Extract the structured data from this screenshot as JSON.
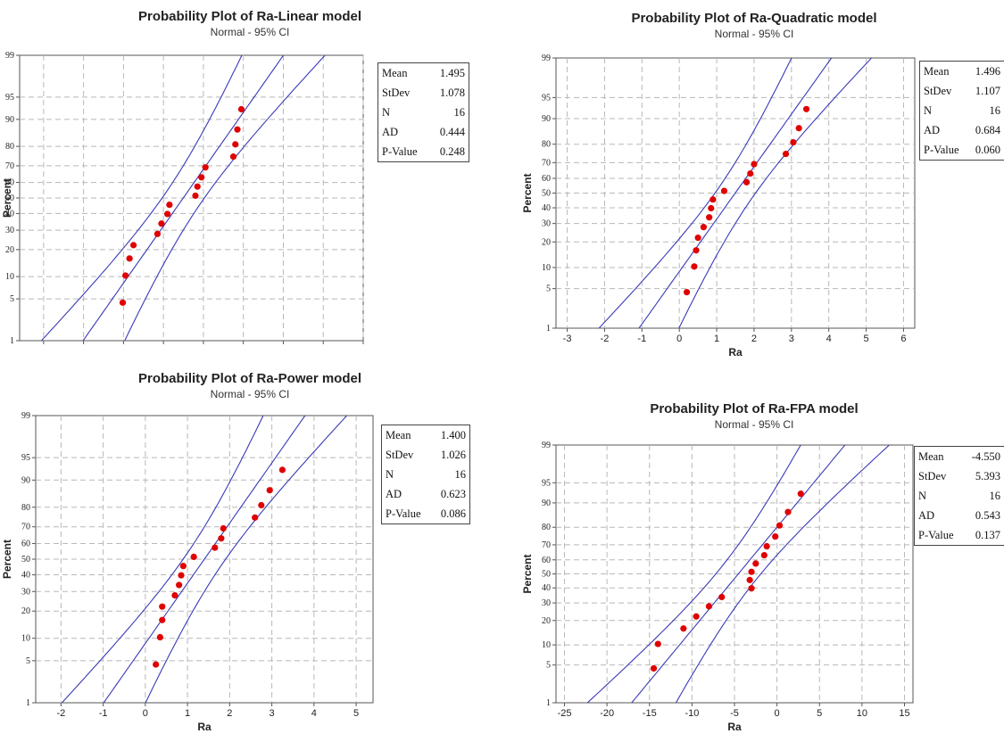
{
  "chart_data": [
    {
      "type": "scatter",
      "title": "Probability Plot of Ra-Linear model",
      "subtitle": "Normal - 95% CI",
      "xlabel": "",
      "ylabel": "Percent",
      "xlim": [
        -2.6,
        6.0
      ],
      "xticks": [],
      "yticks": [
        1,
        5,
        10,
        20,
        30,
        40,
        50,
        60,
        70,
        80,
        90,
        95,
        99
      ],
      "grid": true,
      "stats": {
        "Mean": "1.495",
        "StDev": "1.078",
        "N": "16",
        "AD": "0.444",
        "P-Value": "0.248"
      },
      "points": [
        {
          "x": -0.02,
          "y": 4.4
        },
        {
          "x": 0.05,
          "y": 10.3
        },
        {
          "x": 0.15,
          "y": 16.2
        },
        {
          "x": 0.25,
          "y": 22.1
        },
        {
          "x": 0.85,
          "y": 27.9
        },
        {
          "x": 0.95,
          "y": 33.8
        },
        {
          "x": 1.1,
          "y": 39.7
        },
        {
          "x": 1.15,
          "y": 45.6
        },
        {
          "x": 1.8,
          "y": 51.5
        },
        {
          "x": 1.85,
          "y": 57.4
        },
        {
          "x": 1.95,
          "y": 63.2
        },
        {
          "x": 2.05,
          "y": 69.1
        },
        {
          "x": 2.75,
          "y": 75.0
        },
        {
          "x": 2.8,
          "y": 80.9
        },
        {
          "x": 2.85,
          "y": 86.8
        },
        {
          "x": 2.95,
          "y": 92.6
        }
      ]
    },
    {
      "type": "scatter",
      "title": "Probability Plot of Ra-Quadratic model",
      "subtitle": "Normal - 95% CI",
      "xlabel": "Ra",
      "ylabel": "Percent",
      "xlim": [
        -3.3,
        6.3
      ],
      "xticks": [
        -3,
        -2,
        -1,
        0,
        1,
        2,
        3,
        4,
        5,
        6
      ],
      "yticks": [
        1,
        5,
        10,
        20,
        30,
        40,
        50,
        60,
        70,
        80,
        90,
        95,
        99
      ],
      "grid": true,
      "stats": {
        "Mean": "1.496",
        "StDev": "1.107",
        "N": "16",
        "AD": "0.684",
        "P-Value": "0.060"
      },
      "points": [
        {
          "x": 0.2,
          "y": 4.4
        },
        {
          "x": 0.4,
          "y": 10.3
        },
        {
          "x": 0.45,
          "y": 16.2
        },
        {
          "x": 0.5,
          "y": 22.1
        },
        {
          "x": 0.65,
          "y": 27.9
        },
        {
          "x": 0.8,
          "y": 33.8
        },
        {
          "x": 0.85,
          "y": 39.7
        },
        {
          "x": 0.9,
          "y": 45.6
        },
        {
          "x": 1.2,
          "y": 51.5
        },
        {
          "x": 1.8,
          "y": 57.4
        },
        {
          "x": 1.9,
          "y": 63.2
        },
        {
          "x": 2.0,
          "y": 69.1
        },
        {
          "x": 2.85,
          "y": 75.0
        },
        {
          "x": 3.05,
          "y": 80.9
        },
        {
          "x": 3.2,
          "y": 86.8
        },
        {
          "x": 3.4,
          "y": 92.6
        }
      ]
    },
    {
      "type": "scatter",
      "title": "Probability Plot of Ra-Power model",
      "subtitle": "Normal - 95% CI",
      "xlabel": "Ra",
      "ylabel": "Percent",
      "xlim": [
        -2.6,
        5.4
      ],
      "xticks": [
        -2,
        -1,
        0,
        1,
        2,
        3,
        4,
        5
      ],
      "yticks": [
        1,
        5,
        10,
        20,
        30,
        40,
        50,
        60,
        70,
        80,
        90,
        95,
        99
      ],
      "grid": true,
      "stats": {
        "Mean": "1.400",
        "StDev": "1.026",
        "N": "16",
        "AD": "0.623",
        "P-Value": "0.086"
      },
      "points": [
        {
          "x": 0.25,
          "y": 4.4
        },
        {
          "x": 0.35,
          "y": 10.3
        },
        {
          "x": 0.4,
          "y": 16.2
        },
        {
          "x": 0.4,
          "y": 22.1
        },
        {
          "x": 0.7,
          "y": 27.9
        },
        {
          "x": 0.8,
          "y": 33.8
        },
        {
          "x": 0.85,
          "y": 39.7
        },
        {
          "x": 0.9,
          "y": 45.6
        },
        {
          "x": 1.15,
          "y": 51.5
        },
        {
          "x": 1.65,
          "y": 57.4
        },
        {
          "x": 1.8,
          "y": 63.2
        },
        {
          "x": 1.85,
          "y": 69.1
        },
        {
          "x": 2.6,
          "y": 75.0
        },
        {
          "x": 2.75,
          "y": 80.9
        },
        {
          "x": 2.95,
          "y": 86.8
        },
        {
          "x": 3.25,
          "y": 92.6
        }
      ]
    },
    {
      "type": "scatter",
      "title": "Probability Plot of Ra-FPA model",
      "subtitle": "Normal - 95% CI",
      "xlabel": "Ra",
      "ylabel": "Percent",
      "xlim": [
        -26,
        16
      ],
      "xticks": [
        -25,
        -20,
        -15,
        -10,
        -5,
        0,
        5,
        10,
        15
      ],
      "yticks": [
        1,
        5,
        10,
        20,
        30,
        40,
        50,
        60,
        70,
        80,
        90,
        95,
        99
      ],
      "grid": true,
      "stats": {
        "Mean": "-4.550",
        "StDev": "5.393",
        "N": "16",
        "AD": "0.543",
        "P-Value": "0.137"
      },
      "points": [
        {
          "x": -14.5,
          "y": 4.4
        },
        {
          "x": -14.0,
          "y": 10.3
        },
        {
          "x": -11.0,
          "y": 16.2
        },
        {
          "x": -9.5,
          "y": 22.1
        },
        {
          "x": -8.0,
          "y": 27.9
        },
        {
          "x": -6.5,
          "y": 33.8
        },
        {
          "x": -3.0,
          "y": 39.7
        },
        {
          "x": -3.2,
          "y": 45.6
        },
        {
          "x": -3.0,
          "y": 51.5
        },
        {
          "x": -2.5,
          "y": 57.4
        },
        {
          "x": -1.5,
          "y": 63.2
        },
        {
          "x": -1.2,
          "y": 69.1
        },
        {
          "x": -0.2,
          "y": 75.0
        },
        {
          "x": 0.3,
          "y": 80.9
        },
        {
          "x": 1.3,
          "y": 86.8
        },
        {
          "x": 2.8,
          "y": 92.6
        }
      ]
    }
  ]
}
